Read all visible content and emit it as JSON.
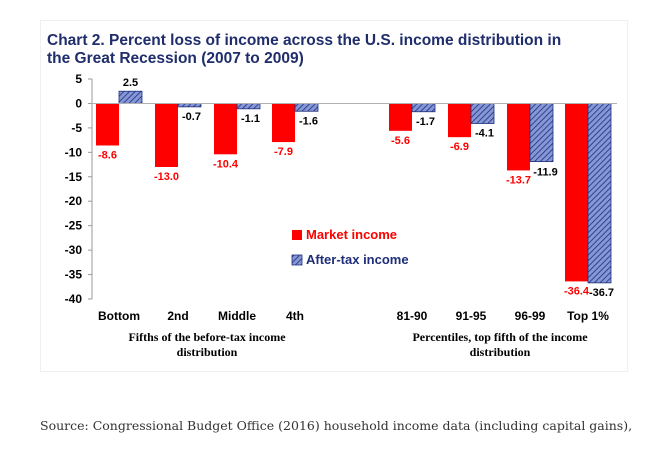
{
  "chart_data": {
    "type": "bar",
    "title_lines": [
      "Chart 2. Percent loss of income across the U.S. income distribution in",
      "the Great Recession (2007 to 2009)"
    ],
    "categories": [
      "Bottom",
      "2nd",
      "Middle",
      "4th",
      "81-90",
      "91-95",
      "96-99",
      "Top 1%"
    ],
    "series": [
      {
        "name": "Market income",
        "values": [
          -8.6,
          -13.0,
          -10.4,
          -7.9,
          -5.6,
          -6.9,
          -13.7,
          -36.4
        ],
        "labels": [
          "-8.6",
          "-13.0",
          "-10.4",
          "-7.9",
          "-5.6",
          "-6.9",
          "-13.7",
          "-36.4"
        ]
      },
      {
        "name": "After-tax income",
        "values": [
          2.5,
          -0.7,
          -1.1,
          -1.6,
          -1.7,
          -4.1,
          -11.9,
          -36.7
        ],
        "labels": [
          "2.5",
          "-0.7",
          "-1.1",
          "-1.6",
          "-1.7",
          "-4.1",
          "-11.9",
          "-36.7"
        ]
      }
    ],
    "group_labels": [
      {
        "lines": [
          "Fifths of the before-tax income",
          "distribution"
        ],
        "categories": [
          "Bottom",
          "2nd",
          "Middle",
          "4th"
        ]
      },
      {
        "lines": [
          "Percentiles, top fifth of the income",
          "distribution"
        ],
        "categories": [
          "81-90",
          "91-95",
          "96-99",
          "Top 1%"
        ]
      }
    ],
    "ylim": [
      -40,
      5
    ],
    "yticks": [
      5,
      0,
      -5,
      -10,
      -15,
      -20,
      -25,
      -30,
      -35,
      -40
    ],
    "xlabel": "",
    "ylabel": "",
    "legend_position": "center",
    "grid": false
  },
  "colors": {
    "market": "#ff0000",
    "after_tax_fill": "#8597d6",
    "after_tax_hatch": "#1f2d7a",
    "title": "#1f2d6b",
    "market_label": "#ff0000",
    "after_label": "#000000"
  },
  "source_note": "Source: Congressional Budget Office (2016) household income data (including capital gains),"
}
